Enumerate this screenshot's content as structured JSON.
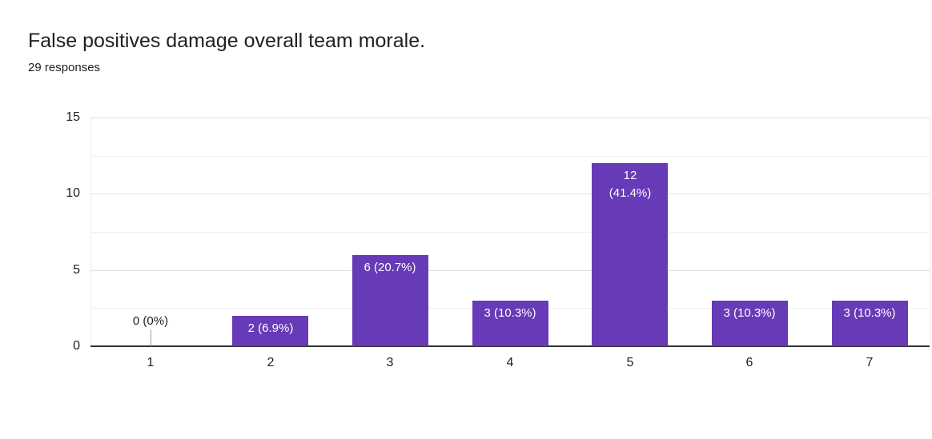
{
  "header": {
    "title": "False positives damage overall team morale.",
    "responses": "29 responses"
  },
  "chart_data": {
    "type": "bar",
    "title": "False positives damage overall team morale.",
    "subtitle": "29 responses",
    "categories": [
      "1",
      "2",
      "3",
      "4",
      "5",
      "6",
      "7"
    ],
    "values": [
      0,
      2,
      6,
      3,
      12,
      3,
      3
    ],
    "percentages": [
      "0%",
      "6.9%",
      "20.7%",
      "10.3%",
      "41.4%",
      "10.3%",
      "10.3%"
    ],
    "bar_labels": [
      [
        "0 (0%)"
      ],
      [
        "2 (6.9%)"
      ],
      [
        "6 (20.7%)"
      ],
      [
        "3 (10.3%)"
      ],
      [
        "12",
        "(41.4%)"
      ],
      [
        "3 (10.3%)"
      ],
      [
        "3 (10.3%)"
      ]
    ],
    "xlabel": "",
    "ylabel": "",
    "ylim": [
      0,
      15
    ],
    "yticks": [
      0,
      5,
      10,
      15
    ],
    "minor_grid_step": 2.5,
    "grid": true,
    "legend": "none",
    "colors": {
      "bar": "#673ab7",
      "bar_label": "#ffffff",
      "zero_label": "#212121",
      "axis_text": "#212121",
      "baseline": "#333333",
      "grid_major": "#e0e0e0",
      "grid_minor": "#f0f0f0",
      "background": "#ffffff"
    }
  }
}
